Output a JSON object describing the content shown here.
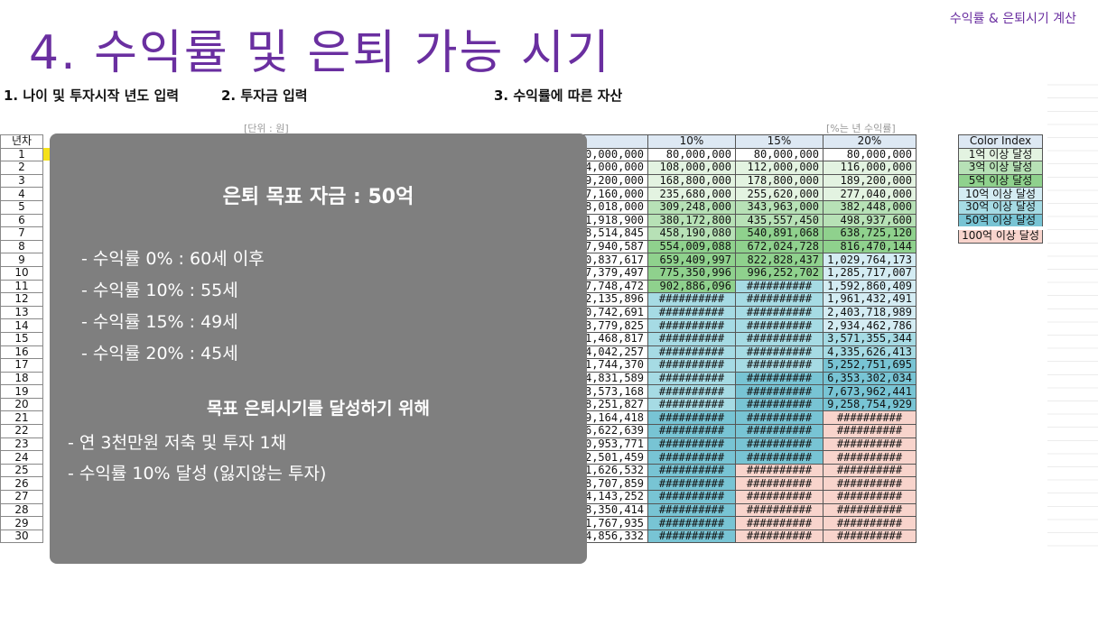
{
  "slide_title": "4. 수익률 및 은퇴 가능 시기",
  "corner_label": "수익률 & 은퇴시기 계산",
  "sections": {
    "s1": "1. 나이 및 투자시작 년도 입력",
    "s2": "2. 투자금 입력",
    "s3": "3. 수익률에 따른 자산"
  },
  "unit_left": "[단위 : 원]",
  "unit_right": "[%는 년 수익률]",
  "row_header": "년차",
  "years": [
    "1",
    "2",
    "3",
    "4",
    "5",
    "6",
    "7",
    "8",
    "9",
    "10",
    "11",
    "12",
    "13",
    "14",
    "15",
    "16",
    "17",
    "18",
    "19",
    "20",
    "21",
    "22",
    "23",
    "24",
    "25",
    "26",
    "27",
    "28",
    "29",
    "30"
  ],
  "table": {
    "headers": [
      "",
      "10%",
      "15%",
      "20%"
    ],
    "col5": [
      "0,000,000",
      "4,000,000",
      "9,200,000",
      "7,160,000",
      "8,018,000",
      "1,918,900",
      "8,514,845",
      "7,940,587",
      "0,837,617",
      "7,379,497",
      "7,748,472",
      "2,135,896",
      "0,742,691",
      "3,779,825",
      "1,468,817",
      "4,042,257",
      "1,744,370",
      "4,831,589",
      "3,573,168",
      "8,251,827",
      "9,164,418",
      "6,622,639",
      "0,953,771",
      "2,501,459",
      "1,626,532",
      "8,707,859",
      "4,143,252",
      "8,350,414",
      "1,767,935",
      "4,856,332"
    ],
    "col10": [
      "80,000,000",
      "108,000,000",
      "168,800,000",
      "235,680,000",
      "309,248,000",
      "380,172,800",
      "458,190,080",
      "554,009,088",
      "659,409,997",
      "775,350,996",
      "902,886,096",
      "##########",
      "##########",
      "##########",
      "##########",
      "##########",
      "##########",
      "##########",
      "##########",
      "##########",
      "##########",
      "##########",
      "##########",
      "##########",
      "##########",
      "##########",
      "##########",
      "##########",
      "##########",
      "##########"
    ],
    "col15": [
      "80,000,000",
      "112,000,000",
      "178,800,000",
      "255,620,000",
      "343,963,000",
      "435,557,450",
      "540,891,068",
      "672,024,728",
      "822,828,437",
      "996,252,702",
      "##########",
      "##########",
      "##########",
      "##########",
      "##########",
      "##########",
      "##########",
      "##########",
      "##########",
      "##########",
      "##########",
      "##########",
      "##########",
      "##########",
      "##########",
      "##########",
      "##########",
      "##########",
      "##########",
      "##########"
    ],
    "col20": [
      "80,000,000",
      "116,000,000",
      "189,200,000",
      "277,040,000",
      "382,448,000",
      "498,937,600",
      "638,725,120",
      "816,470,144",
      "1,029,764,173",
      "1,285,717,007",
      "1,592,860,409",
      "1,961,432,491",
      "2,403,718,989",
      "2,934,462,786",
      "3,571,355,344",
      "4,335,626,413",
      "5,252,751,695",
      "6,353,302,034",
      "7,673,962,441",
      "9,258,754,929",
      "##########",
      "##########",
      "##########",
      "##########",
      "##########",
      "##########",
      "##########",
      "##########",
      "##########",
      "##########"
    ]
  },
  "color_index": {
    "header": "Color Index",
    "items": [
      {
        "label": "1억 이상 달성",
        "color": "#e3f3e1"
      },
      {
        "label": "3억 이상 달성",
        "color": "#b7e1b6"
      },
      {
        "label": "5억 이상 달성",
        "color": "#8fd18d"
      },
      {
        "label": "10억 이상 달성",
        "color": "#d4ecf3"
      },
      {
        "label": "30억 이상 달성",
        "color": "#a6dbe4"
      },
      {
        "label": "50억 이상 달성",
        "color": "#78c4d4"
      },
      {
        "label": "100억 이상 달성",
        "color": "#f8d4cc"
      }
    ]
  },
  "overlay": {
    "title": "은퇴 목표 자금 : 50억",
    "lines": [
      "- 수익률    0% : 60세 이후",
      "- 수익률 10% : 55세",
      "- 수익률 15% : 49세",
      "- 수익률 20% : 45세"
    ],
    "subtitle": "목표 은퇴시기를 달성하기 위해",
    "bullets": [
      "- 연 3천만원 저축 및 투자 1채",
      "- 수익률 10% 달성 (잃지않는 투자)"
    ]
  }
}
